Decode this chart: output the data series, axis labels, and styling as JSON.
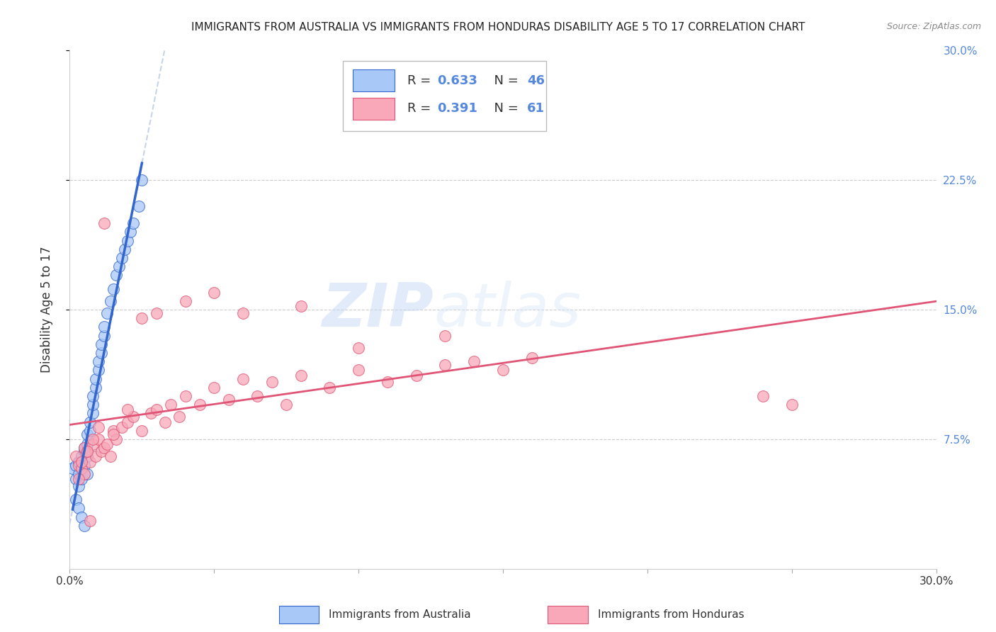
{
  "title": "IMMIGRANTS FROM AUSTRALIA VS IMMIGRANTS FROM HONDURAS DISABILITY AGE 5 TO 17 CORRELATION CHART",
  "source": "Source: ZipAtlas.com",
  "ylabel": "Disability Age 5 to 17",
  "xlim": [
    0.0,
    0.3
  ],
  "ylim": [
    0.0,
    0.3
  ],
  "legend_R1": "R = 0.633",
  "legend_N1": "N = 46",
  "legend_R2": "R = 0.391",
  "legend_N2": "N = 61",
  "color_australia": "#a8c8f8",
  "color_honduras": "#f8a8b8",
  "color_line_australia": "#3366cc",
  "color_line_honduras": "#e05575",
  "color_dashed": "#b0c4de",
  "watermark_zip": "ZIP",
  "watermark_atlas": "atlas",
  "background_color": "#ffffff",
  "grid_color": "#cccccc",
  "title_color": "#222222",
  "right_tick_color": "#5588dd",
  "australia_x": [
    0.001,
    0.002,
    0.002,
    0.003,
    0.003,
    0.003,
    0.004,
    0.004,
    0.004,
    0.005,
    0.005,
    0.005,
    0.005,
    0.006,
    0.006,
    0.006,
    0.007,
    0.007,
    0.008,
    0.008,
    0.008,
    0.009,
    0.009,
    0.01,
    0.01,
    0.011,
    0.011,
    0.012,
    0.012,
    0.013,
    0.014,
    0.015,
    0.016,
    0.017,
    0.018,
    0.019,
    0.02,
    0.021,
    0.022,
    0.024,
    0.002,
    0.003,
    0.004,
    0.005,
    0.006,
    0.025
  ],
  "australia_y": [
    0.058,
    0.052,
    0.06,
    0.055,
    0.062,
    0.048,
    0.058,
    0.065,
    0.052,
    0.068,
    0.06,
    0.055,
    0.07,
    0.072,
    0.078,
    0.065,
    0.08,
    0.085,
    0.09,
    0.095,
    0.1,
    0.105,
    0.11,
    0.115,
    0.12,
    0.125,
    0.13,
    0.135,
    0.14,
    0.148,
    0.155,
    0.162,
    0.17,
    0.175,
    0.18,
    0.185,
    0.19,
    0.195,
    0.2,
    0.21,
    0.04,
    0.035,
    0.03,
    0.025,
    0.055,
    0.225
  ],
  "honduras_x": [
    0.002,
    0.003,
    0.004,
    0.005,
    0.005,
    0.006,
    0.007,
    0.008,
    0.009,
    0.01,
    0.011,
    0.012,
    0.013,
    0.014,
    0.015,
    0.016,
    0.018,
    0.02,
    0.022,
    0.025,
    0.028,
    0.03,
    0.033,
    0.035,
    0.038,
    0.04,
    0.045,
    0.05,
    0.055,
    0.06,
    0.065,
    0.07,
    0.075,
    0.08,
    0.09,
    0.1,
    0.11,
    0.12,
    0.13,
    0.14,
    0.15,
    0.16,
    0.004,
    0.006,
    0.008,
    0.01,
    0.015,
    0.02,
    0.025,
    0.03,
    0.04,
    0.05,
    0.06,
    0.08,
    0.1,
    0.13,
    0.24,
    0.25,
    0.003,
    0.007,
    0.012
  ],
  "honduras_y": [
    0.065,
    0.06,
    0.058,
    0.07,
    0.055,
    0.068,
    0.062,
    0.072,
    0.065,
    0.075,
    0.068,
    0.07,
    0.072,
    0.065,
    0.08,
    0.075,
    0.082,
    0.085,
    0.088,
    0.08,
    0.09,
    0.092,
    0.085,
    0.095,
    0.088,
    0.1,
    0.095,
    0.105,
    0.098,
    0.11,
    0.1,
    0.108,
    0.095,
    0.112,
    0.105,
    0.115,
    0.108,
    0.112,
    0.118,
    0.12,
    0.115,
    0.122,
    0.062,
    0.068,
    0.075,
    0.082,
    0.078,
    0.092,
    0.145,
    0.148,
    0.155,
    0.16,
    0.148,
    0.152,
    0.128,
    0.135,
    0.1,
    0.095,
    0.052,
    0.028,
    0.2
  ]
}
